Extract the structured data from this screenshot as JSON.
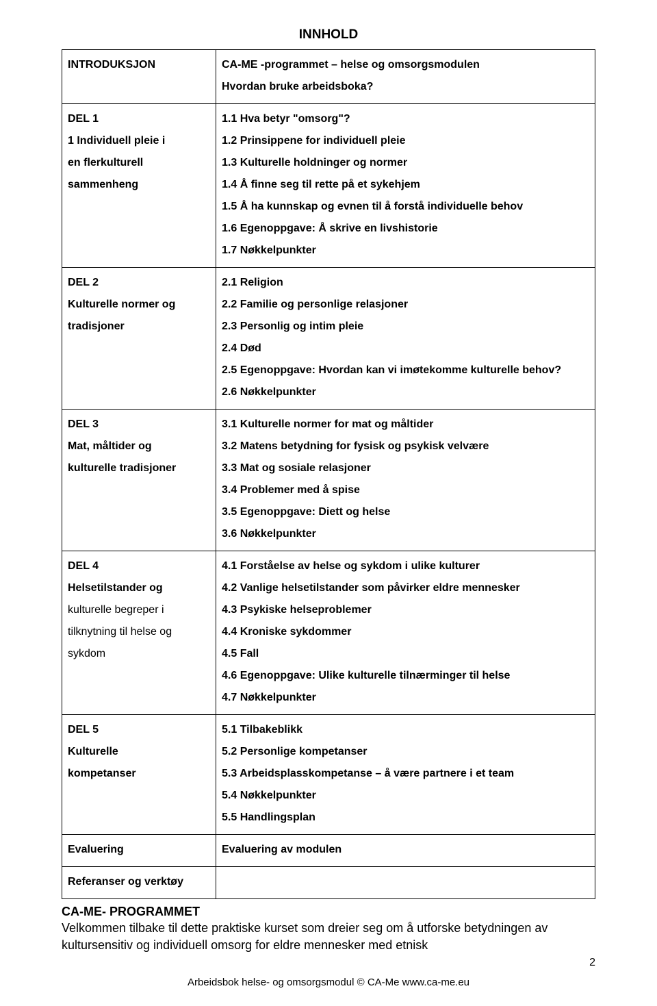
{
  "title": "INNHOLD",
  "rows": [
    {
      "left": [
        "INTRODUKSJON"
      ],
      "right": [
        "CA-ME -programmet – helse og omsorgsmodulen",
        "Hvordan bruke arbeidsboka?"
      ]
    },
    {
      "left": [
        "DEL 1",
        "1 Individuell pleie i",
        "en flerkulturell",
        "sammenheng"
      ],
      "right": [
        "1.1 Hva betyr \"omsorg\"?",
        "1.2 Prinsippene for individuell pleie",
        "1.3 Kulturelle holdninger og normer",
        "1.4 Å finne seg til rette på et sykehjem",
        "1.5 Å ha kunnskap og evnen til å forstå individuelle behov",
        "1.6 Egenoppgave: Å skrive en livshistorie",
        "1.7 Nøkkelpunkter"
      ]
    },
    {
      "left": [
        "DEL 2",
        "Kulturelle normer og",
        "tradisjoner"
      ],
      "right": [
        "2.1 Religion",
        "2.2 Familie og personlige relasjoner",
        "2.3 Personlig og intim pleie",
        "2.4 Død",
        "2.5 Egenoppgave: Hvordan kan vi imøtekomme kulturelle behov?",
        "2.6 Nøkkelpunkter"
      ]
    },
    {
      "left": [
        "DEL 3",
        "Mat, måltider og",
        "kulturelle tradisjoner"
      ],
      "right": [
        "3.1 Kulturelle normer for mat og måltider",
        "3.2 Matens betydning for fysisk og psykisk velvære",
        "3.3 Mat og sosiale relasjoner",
        "3.4 Problemer med å spise",
        "3.5 Egenoppgave: Diett og helse",
        "3.6 Nøkkelpunkter"
      ]
    },
    {
      "left": [
        "DEL 4",
        "Helsetilstander og"
      ],
      "left_normal": [
        "kulturelle begreper i",
        "tilknytning til helse og",
        "sykdom"
      ],
      "right": [
        "4.1 Forståelse av helse og sykdom i ulike kulturer",
        "4.2 Vanlige helsetilstander som påvirker eldre mennesker",
        "4.3 Psykiske helseproblemer",
        "4.4 Kroniske sykdommer",
        "4.5 Fall",
        "4.6 Egenoppgave: Ulike kulturelle tilnærminger til helse",
        "4.7 Nøkkelpunkter"
      ]
    },
    {
      "left": [
        "DEL 5",
        "Kulturelle",
        "kompetanser"
      ],
      "right": [
        "5.1 Tilbakeblikk",
        "5.2 Personlige kompetanser",
        "5.3 Arbeidsplasskompetanse – å være partnere i et team",
        "5.4 Nøkkelpunkter",
        "5.5 Handlingsplan"
      ]
    },
    {
      "left": [
        "Evaluering"
      ],
      "right": [
        "Evaluering av modulen"
      ]
    },
    {
      "left": [
        "Referanser og verktøy"
      ],
      "right": []
    }
  ],
  "after_heading": "CA-ME- PROGRAMMET",
  "after_body": "Velkommen tilbake til dette praktiske kurset som dreier seg om å utforske betydningen av kultursensitiv og individuell omsorg for eldre mennesker med etnisk",
  "footer": "Arbeidsbok helse- og omsorgsmodul © CA-Me www.ca-me.eu",
  "page_number": "2"
}
